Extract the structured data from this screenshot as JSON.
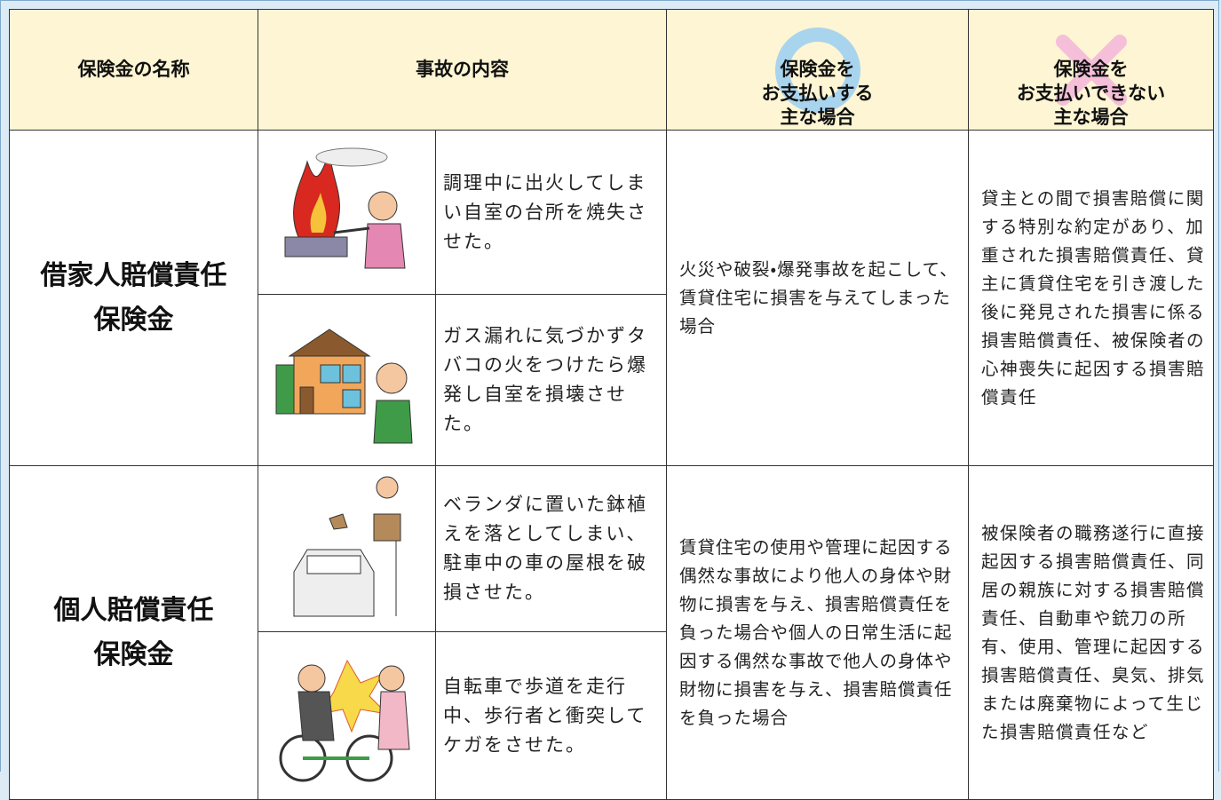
{
  "table": {
    "header": [
      "保険金の名称",
      "事故の内容",
      "保険金を\nお支払いする\n主な場合",
      "保険金を\nお支払いできない\n主な場合"
    ],
    "rows": [
      {
        "name": "借家人賠償責任\n保険金",
        "incidents": [
          "調理中に出火してしまい自室の台所を焼失させた。",
          "ガス漏れに気づかずタバコの火をつけたら爆発し自室を損壊させた。"
        ],
        "covered": "火災や破裂・爆発事故を起こして、賃貸住宅に損害を与えてしまった場合",
        "not_covered": "貸主との間で損害賠償に関する特別な約定があり、加重された損害賠償責任、貸主に賃貸住宅を引き渡した後に発見された損害に係る損害賠償責任、被保険者の心神喪失に起因する損害賠償責任"
      },
      {
        "name": "個人賠償責任\n保険金",
        "incidents": [
          "ベランダに置いた鉢植えを落としてしまい、駐車中の車の屋根を破損させた。",
          "自転車で歩道を走行中、歩行者と衝突してケガをさせた。"
        ],
        "covered": "賃貸住宅の使用や管理に起因する偶然な事故により他人の身体や財物に損害を与え、損害賠償責任を負った場合や個人の日常生活に起因する偶然な事故で他人の身体や財物に損害を与え、損害賠償責任を負った場合",
        "not_covered": "被保険者の職務遂行に直接起因する損害賠償責任、同居の親族に対する損害賠償責任、自動車や銃刀の所有、使用、管理に起因する損害賠償責任、臭気、排気または廃棄物によって生じた損害賠償責任など"
      }
    ]
  }
}
